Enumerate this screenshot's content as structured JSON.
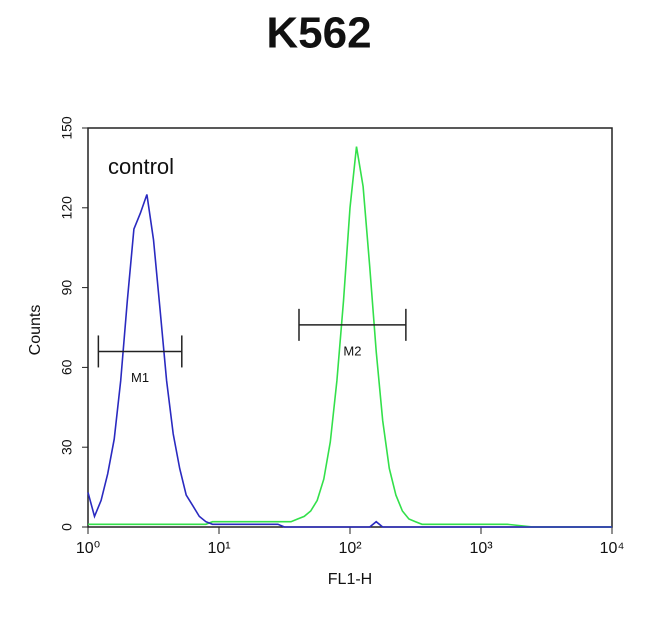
{
  "chart_data": {
    "type": "line",
    "title": "K562",
    "x_label": "FL1-H",
    "y_label": "Counts",
    "x_scale": "log",
    "xlim": [
      1,
      10000
    ],
    "xticks": [
      {
        "value": 1,
        "label": "10⁰"
      },
      {
        "value": 10,
        "label": "10¹"
      },
      {
        "value": 100,
        "label": "10²"
      },
      {
        "value": 1000,
        "label": "10³"
      },
      {
        "value": 10000,
        "label": "10⁴"
      }
    ],
    "ylim": [
      0,
      150
    ],
    "yticks": [
      0,
      30,
      60,
      90,
      120,
      150
    ],
    "annotation": "control",
    "x": [
      1,
      1.122,
      1.259,
      1.413,
      1.585,
      1.778,
      1.995,
      2.239,
      2.512,
      2.818,
      3.162,
      3.548,
      3.981,
      4.467,
      5.012,
      5.623,
      6.31,
      7.079,
      7.943,
      8.913,
      10,
      11.22,
      12.59,
      14.13,
      15.85,
      17.78,
      19.95,
      22.39,
      25.12,
      28.18,
      31.62,
      35.48,
      39.81,
      44.67,
      50.12,
      56.23,
      63.1,
      70.79,
      79.43,
      89.13,
      100,
      112.2,
      125.9,
      141.3,
      158.5,
      177.8,
      199.5,
      223.9,
      251.2,
      281.8,
      316.2,
      354.8,
      398.1,
      631,
      1000,
      1585,
      2512,
      3981,
      6310,
      10000
    ],
    "series": [
      {
        "color": "#2a2ac0",
        "values": [
          13,
          4,
          10,
          20,
          33,
          55,
          85,
          112,
          118,
          125,
          108,
          82,
          55,
          35,
          22,
          12,
          8,
          4,
          2,
          1,
          1,
          1,
          1,
          1,
          1,
          1,
          1,
          1,
          1,
          1,
          0,
          0,
          0,
          0,
          0,
          0,
          0,
          0,
          0,
          0,
          0,
          0,
          0,
          0,
          2,
          0,
          0,
          0,
          0,
          0,
          0,
          0,
          0,
          0,
          0,
          0,
          0,
          0,
          0,
          0
        ]
      },
      {
        "color": "#33e04a",
        "values": [
          1,
          1,
          1,
          1,
          1,
          1,
          1,
          1,
          1,
          1,
          1,
          1,
          1,
          1,
          1,
          1,
          1,
          1,
          1,
          2,
          2,
          2,
          2,
          2,
          2,
          2,
          2,
          2,
          2,
          2,
          2,
          2,
          3,
          4,
          6,
          10,
          18,
          32,
          55,
          85,
          120,
          143,
          128,
          98,
          66,
          40,
          22,
          12,
          6,
          3,
          2,
          1,
          1,
          1,
          1,
          1,
          0,
          0,
          0,
          0
        ]
      }
    ],
    "gates": [
      {
        "label": "M1",
        "range": [
          1.2,
          5.2
        ],
        "y": 66
      },
      {
        "label": "M2",
        "range": [
          40.8,
          267
        ],
        "y": 76
      }
    ]
  }
}
